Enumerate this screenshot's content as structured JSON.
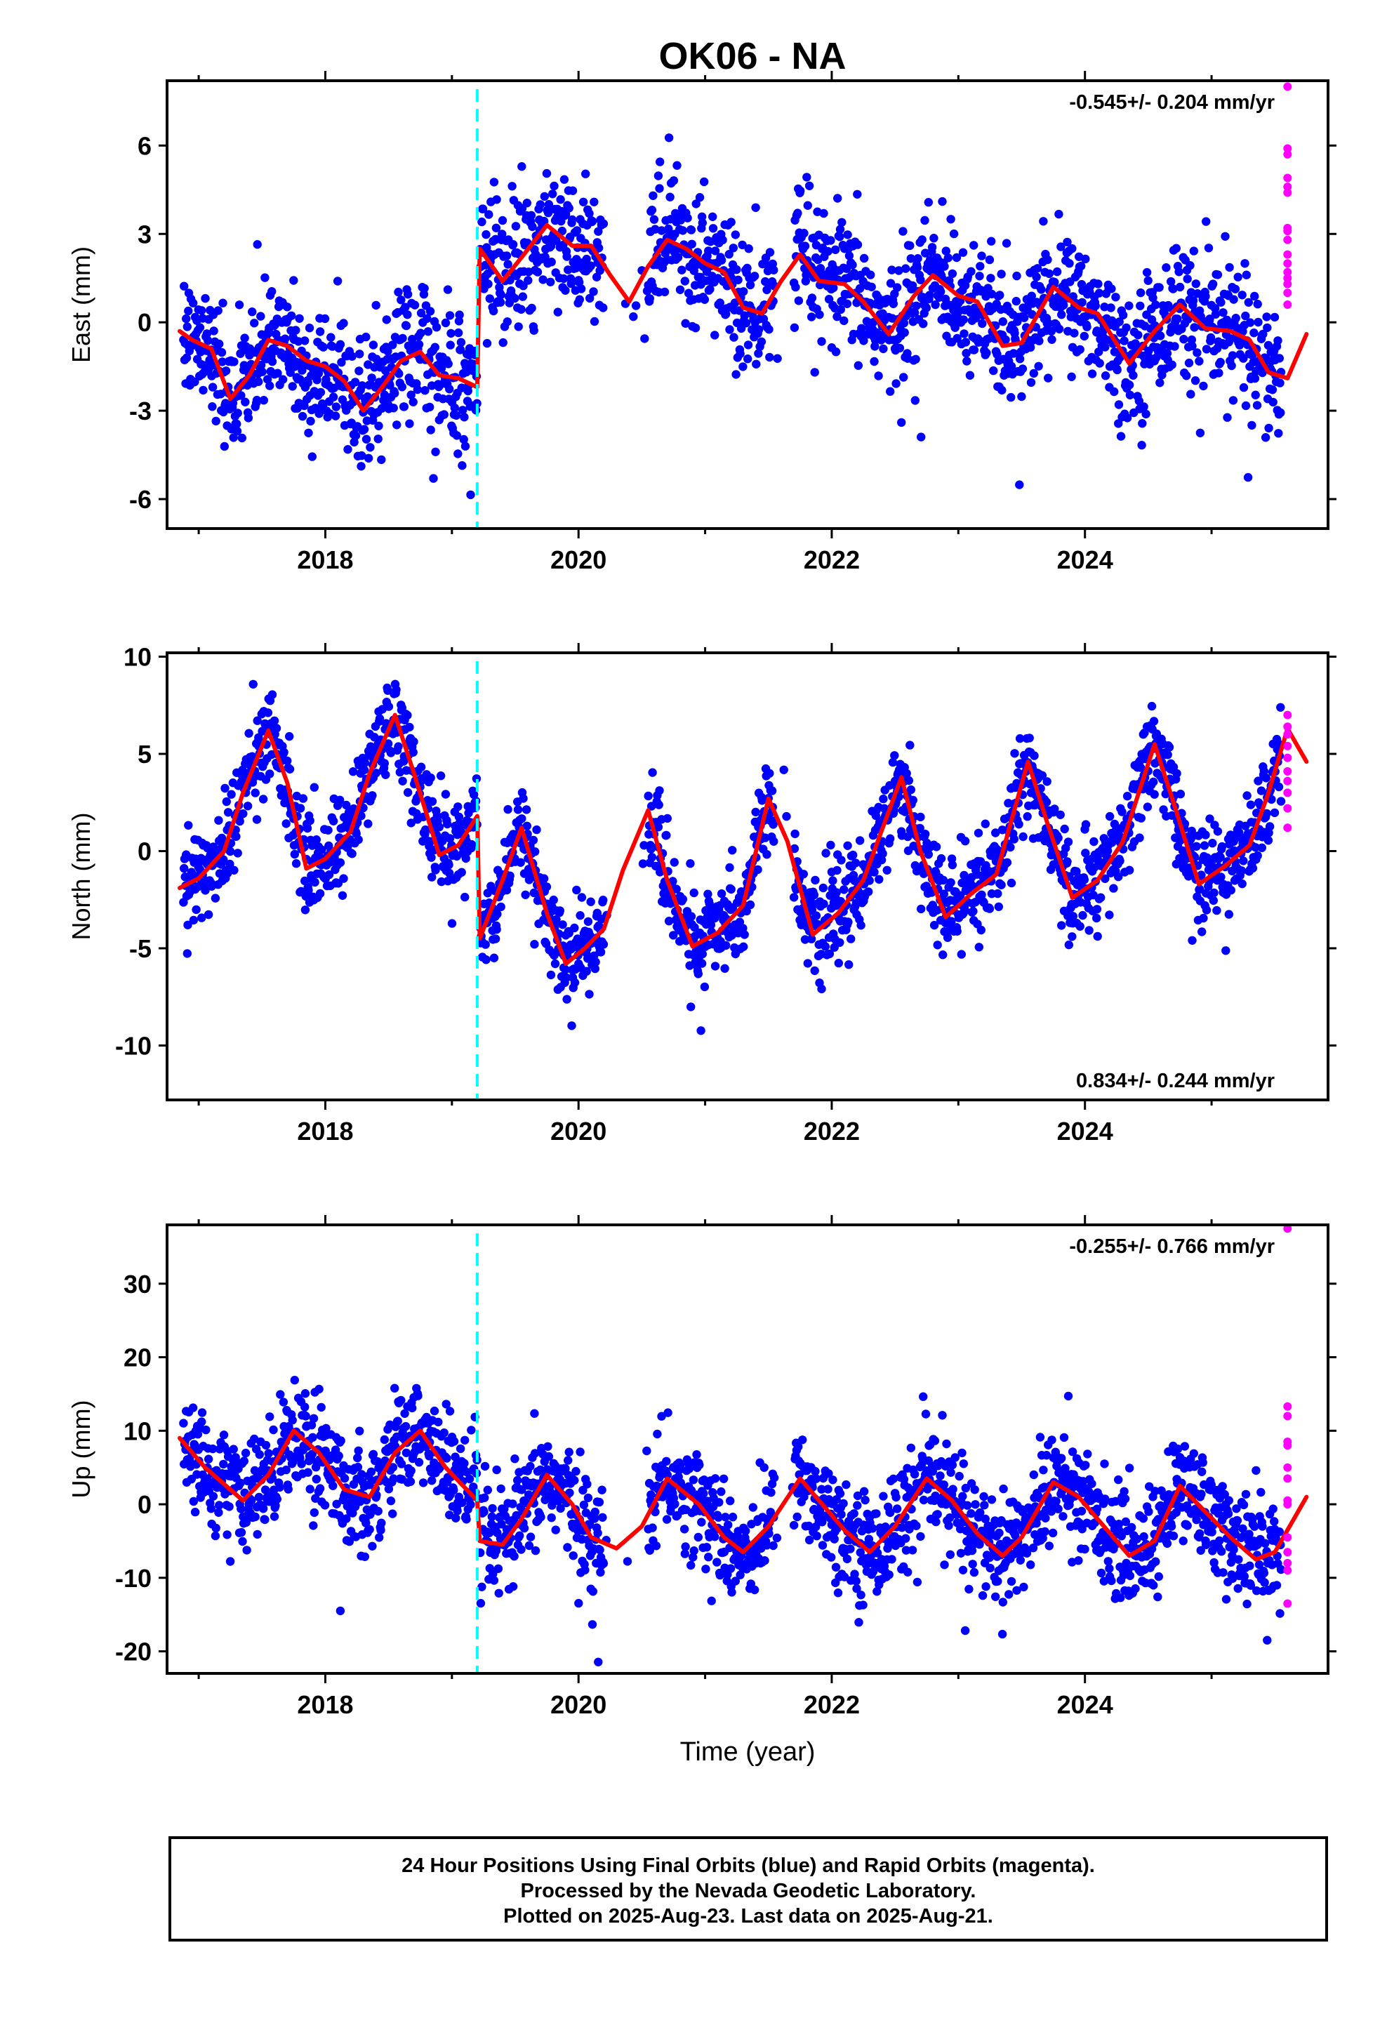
{
  "title": "OK06 - NA",
  "colors": {
    "final_orbits": "#0000ff",
    "rapid_orbits": "#ff00ff",
    "model": "#ff0000",
    "offset_marker": "#00ffff",
    "frame": "#000000"
  },
  "chart_data": [
    {
      "type": "scatter",
      "panel": "east",
      "ylabel": "East (mm)",
      "xlabel": "",
      "xlim": [
        2016.75,
        2025.92
      ],
      "ylim": [
        -7,
        8.2
      ],
      "yticks": [
        -6,
        -3,
        0,
        3,
        6
      ],
      "xticks": [
        2018,
        2020,
        2022,
        2024
      ],
      "rate_label": "-0.545+/- 0.204 mm/yr",
      "rate_position": "top-right",
      "offset_year": 2019.2,
      "model_segments": [
        {
          "x": [
            2016.85,
            2016.95,
            2017.1,
            2017.25,
            2017.4,
            2017.55,
            2017.7,
            2017.85,
            2018.0,
            2018.15,
            2018.3,
            2018.45,
            2018.6,
            2018.75,
            2018.9,
            2019.05,
            2019.2
          ],
          "y": [
            -0.3,
            -0.6,
            -0.9,
            -2.6,
            -1.8,
            -0.6,
            -0.8,
            -1.3,
            -1.5,
            -2.0,
            -3.0,
            -2.2,
            -1.3,
            -1.0,
            -1.8,
            -1.9,
            -2.2
          ]
        },
        {
          "x": [
            2019.22,
            2019.4,
            2019.55,
            2019.75,
            2019.95,
            2020.1,
            2020.25,
            2020.4,
            2020.55,
            2020.7,
            2020.85,
            2021.0,
            2021.15,
            2021.3,
            2021.45,
            2021.6,
            2021.75,
            2021.9,
            2022.1,
            2022.25,
            2022.45,
            2022.65,
            2022.8,
            2023.0,
            2023.15,
            2023.35,
            2023.5,
            2023.75,
            2023.95,
            2024.1,
            2024.35,
            2024.55,
            2024.75,
            2024.95,
            2025.15,
            2025.3,
            2025.45,
            2025.6,
            2025.75
          ],
          "y": [
            2.5,
            1.4,
            2.2,
            3.3,
            2.6,
            2.6,
            1.6,
            0.7,
            1.9,
            2.8,
            2.5,
            2.0,
            1.7,
            0.5,
            0.3,
            1.4,
            2.3,
            1.4,
            1.3,
            0.7,
            -0.4,
            0.9,
            1.6,
            0.9,
            0.7,
            -0.8,
            -0.7,
            1.2,
            0.5,
            0.3,
            -1.4,
            -0.3,
            0.6,
            -0.2,
            -0.3,
            -0.6,
            -1.7,
            -1.9,
            -0.4
          ]
        }
      ],
      "rapid_points": {
        "x": 2025.6,
        "y": [
          8.0,
          5.9,
          5.7,
          4.9,
          4.6,
          4.4,
          3.2,
          3.1,
          2.8,
          2.3,
          2.0,
          1.7,
          1.5,
          1.3,
          1.0,
          0.6
        ]
      }
    },
    {
      "type": "scatter",
      "panel": "north",
      "ylabel": "North (mm)",
      "xlabel": "",
      "xlim": [
        2016.75,
        2025.92
      ],
      "ylim": [
        -12.8,
        10.2
      ],
      "yticks": [
        -10,
        -5,
        0,
        5,
        10
      ],
      "xticks": [
        2018,
        2020,
        2022,
        2024
      ],
      "rate_label": "0.834+/- 0.244 mm/yr",
      "rate_position": "bottom-right",
      "offset_year": 2019.2,
      "model_segments": [
        {
          "x": [
            2016.85,
            2017.0,
            2017.2,
            2017.35,
            2017.55,
            2017.7,
            2017.85,
            2018.0,
            2018.2,
            2018.35,
            2018.55,
            2018.7,
            2018.9,
            2019.05,
            2019.2
          ],
          "y": [
            -1.9,
            -1.4,
            0.0,
            3.0,
            6.2,
            3.5,
            -0.9,
            -0.4,
            1.0,
            4.0,
            7.0,
            4.0,
            -0.2,
            0.3,
            1.8
          ]
        },
        {
          "x": [
            2019.22,
            2019.4,
            2019.55,
            2019.75,
            2019.9,
            2020.05,
            2020.2,
            2020.35,
            2020.55,
            2020.7,
            2020.9,
            2021.1,
            2021.3,
            2021.5,
            2021.65,
            2021.85,
            2022.05,
            2022.25,
            2022.55,
            2022.7,
            2022.9,
            2023.1,
            2023.3,
            2023.55,
            2023.7,
            2023.9,
            2024.1,
            2024.3,
            2024.55,
            2024.7,
            2024.9,
            2025.1,
            2025.3,
            2025.45,
            2025.6,
            2025.75
          ],
          "y": [
            -4.5,
            -1.5,
            1.2,
            -3.2,
            -5.8,
            -5.0,
            -4.0,
            -1.0,
            2.1,
            -1.5,
            -4.9,
            -4.2,
            -2.8,
            2.7,
            0.5,
            -4.3,
            -3.2,
            -1.5,
            3.8,
            0.0,
            -3.4,
            -2.2,
            -1.2,
            4.6,
            1.5,
            -2.4,
            -1.5,
            0.5,
            5.5,
            2.5,
            -1.7,
            -0.8,
            0.3,
            3.0,
            6.3,
            4.6
          ]
        }
      ],
      "rapid_points": {
        "x": 2025.6,
        "y": [
          7.0,
          6.4,
          6.0,
          5.4,
          4.8,
          4.1,
          3.6,
          3.0,
          2.2,
          1.2
        ]
      }
    },
    {
      "type": "scatter",
      "panel": "up",
      "ylabel": "Up (mm)",
      "xlabel": "Time (year)",
      "xlim": [
        2016.75,
        2025.92
      ],
      "ylim": [
        -23,
        38
      ],
      "yticks": [
        -20,
        -10,
        0,
        10,
        20,
        30
      ],
      "xticks": [
        2018,
        2020,
        2022,
        2024
      ],
      "rate_label": "-0.255+/- 0.766 mm/yr",
      "rate_position": "top-right",
      "offset_year": 2019.2,
      "model_segments": [
        {
          "x": [
            2016.85,
            2017.05,
            2017.35,
            2017.55,
            2017.75,
            2017.95,
            2018.15,
            2018.35,
            2018.55,
            2018.75,
            2018.95,
            2019.2
          ],
          "y": [
            9.0,
            5.0,
            0.5,
            4.0,
            10.0,
            7.0,
            2.0,
            1.0,
            7.0,
            10.0,
            5.0,
            0.5
          ]
        },
        {
          "x": [
            2019.22,
            2019.4,
            2019.55,
            2019.75,
            2019.95,
            2020.1,
            2020.3,
            2020.5,
            2020.7,
            2020.95,
            2021.15,
            2021.3,
            2021.5,
            2021.75,
            2021.95,
            2022.1,
            2022.3,
            2022.5,
            2022.75,
            2022.95,
            2023.15,
            2023.35,
            2023.5,
            2023.75,
            2023.95,
            2024.15,
            2024.35,
            2024.55,
            2024.75,
            2024.95,
            2025.15,
            2025.35,
            2025.5,
            2025.75
          ],
          "y": [
            -5.0,
            -5.5,
            -2.0,
            4.0,
            0.0,
            -4.5,
            -6.0,
            -3.0,
            3.5,
            0.0,
            -4.5,
            -6.5,
            -3.0,
            3.5,
            -0.5,
            -3.5,
            -6.5,
            -3.0,
            3.5,
            0.5,
            -4.0,
            -7.0,
            -4.5,
            3.0,
            1.0,
            -3.0,
            -7.0,
            -5.0,
            2.5,
            -1.0,
            -4.5,
            -7.5,
            -6.5,
            1.0
          ]
        }
      ],
      "rapid_points": {
        "x": 2025.6,
        "y": [
          37.5,
          13.3,
          12.0,
          8.5,
          8.0,
          5.0,
          3.5,
          0.5,
          0.0,
          -4.5,
          -6.5,
          -8.0,
          -9.0,
          -13.5
        ]
      }
    }
  ],
  "caption": {
    "line1": "24 Hour Positions Using Final Orbits (blue) and Rapid Orbits (magenta).",
    "line2": "Processed by the Nevada Geodetic Laboratory.",
    "line3": "Plotted on 2025-Aug-23. Last data on 2025-Aug-21."
  }
}
